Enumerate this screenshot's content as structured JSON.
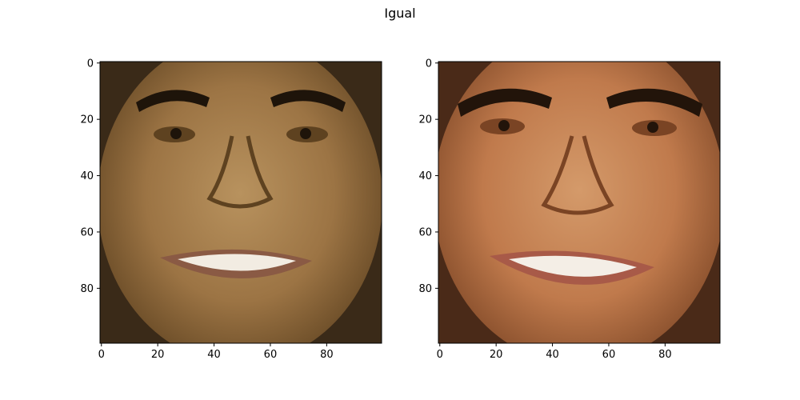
{
  "figure": {
    "title": "Igual"
  },
  "panels": [
    {
      "name": "left-face-image",
      "x_ticks": [
        0,
        20,
        40,
        60,
        80
      ],
      "y_ticks": [
        0,
        20,
        40,
        60,
        80
      ],
      "colors": {
        "background": "#3a2a18",
        "skin_light": "#b8925e",
        "skin_mid": "#9c7444",
        "skin_dark": "#5e4220",
        "hair": "#1e140a",
        "lips": "#8a5a44",
        "teeth": "#f2ece2"
      }
    },
    {
      "name": "right-face-image",
      "x_ticks": [
        0,
        20,
        40,
        60,
        80
      ],
      "y_ticks": [
        0,
        20,
        40,
        60,
        80
      ],
      "colors": {
        "background": "#4a2a18",
        "skin_light": "#d49a6a",
        "skin_mid": "#c07a4c",
        "skin_dark": "#7a4424",
        "hair": "#22140a",
        "lips": "#a85a48",
        "teeth": "#f4eee6"
      }
    }
  ]
}
